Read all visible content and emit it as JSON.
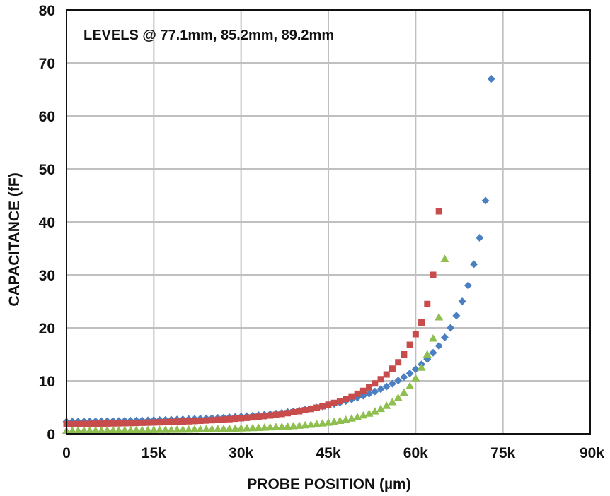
{
  "chart_data": {
    "type": "scatter",
    "title": "",
    "annotation": "LEVELS @ 77.1mm, 85.2mm, 89.2mm",
    "xlabel": "PROBE POSITION (µm)",
    "ylabel": "CAPACITANCE (fF)",
    "xlim": [
      0,
      90000
    ],
    "ylim": [
      0,
      80
    ],
    "x_ticks": [
      0,
      15000,
      30000,
      45000,
      60000,
      75000,
      90000
    ],
    "x_tick_labels": [
      "0",
      "15k",
      "30k",
      "45k",
      "60k",
      "75k",
      "90k"
    ],
    "y_ticks": [
      0,
      10,
      20,
      30,
      40,
      50,
      60,
      70,
      80
    ],
    "y_tick_labels": [
      "0",
      "10",
      "20",
      "30",
      "40",
      "50",
      "60",
      "70",
      "80"
    ],
    "grid": true,
    "legend": "none",
    "series": [
      {
        "marker": "diamond",
        "color": "#4a7fc1",
        "points": [
          [
            0,
            2.3
          ],
          [
            1000,
            2.31
          ],
          [
            2000,
            2.32
          ],
          [
            3000,
            2.34
          ],
          [
            4000,
            2.35
          ],
          [
            5000,
            2.37
          ],
          [
            6000,
            2.38
          ],
          [
            7000,
            2.4
          ],
          [
            8000,
            2.42
          ],
          [
            9000,
            2.44
          ],
          [
            10000,
            2.46
          ],
          [
            11000,
            2.48
          ],
          [
            12000,
            2.5
          ],
          [
            13000,
            2.52
          ],
          [
            14000,
            2.55
          ],
          [
            15000,
            2.58
          ],
          [
            16000,
            2.61
          ],
          [
            17000,
            2.64
          ],
          [
            18000,
            2.67
          ],
          [
            19000,
            2.7
          ],
          [
            20000,
            2.74
          ],
          [
            21000,
            2.78
          ],
          [
            22000,
            2.82
          ],
          [
            23000,
            2.86
          ],
          [
            24000,
            2.91
          ],
          [
            25000,
            2.96
          ],
          [
            26000,
            3.01
          ],
          [
            27000,
            3.07
          ],
          [
            28000,
            3.13
          ],
          [
            29000,
            3.2
          ],
          [
            30000,
            3.27
          ],
          [
            31000,
            3.35
          ],
          [
            32000,
            3.43
          ],
          [
            33000,
            3.52
          ],
          [
            34000,
            3.62
          ],
          [
            35000,
            3.72
          ],
          [
            36000,
            3.84
          ],
          [
            37000,
            3.96
          ],
          [
            38000,
            4.1
          ],
          [
            39000,
            4.24
          ],
          [
            40000,
            4.4
          ],
          [
            41000,
            4.57
          ],
          [
            42000,
            4.75
          ],
          [
            43000,
            4.95
          ],
          [
            44000,
            5.16
          ],
          [
            45000,
            5.39
          ],
          [
            46000,
            5.63
          ],
          [
            47000,
            5.9
          ],
          [
            48000,
            6.18
          ],
          [
            49000,
            6.49
          ],
          [
            50000,
            6.82
          ],
          [
            51000,
            7.18
          ],
          [
            52000,
            7.56
          ],
          [
            53000,
            7.98
          ],
          [
            54000,
            8.43
          ],
          [
            55000,
            8.92
          ],
          [
            56000,
            9.45
          ],
          [
            57000,
            10.05
          ],
          [
            58000,
            10.7
          ],
          [
            59000,
            11.4
          ],
          [
            60000,
            12.2
          ],
          [
            61000,
            13.1
          ],
          [
            62000,
            14.1
          ],
          [
            63000,
            15.3
          ],
          [
            64000,
            16.6
          ],
          [
            65000,
            18.2
          ],
          [
            66000,
            20.0
          ],
          [
            67000,
            22.3
          ],
          [
            68000,
            25.0
          ],
          [
            69000,
            28.0
          ],
          [
            70000,
            32.0
          ],
          [
            71000,
            37.0
          ],
          [
            72000,
            44.0
          ],
          [
            73000,
            67.0
          ]
        ]
      },
      {
        "marker": "square",
        "color": "#c84c4c",
        "points": [
          [
            0,
            1.8
          ],
          [
            1000,
            1.82
          ],
          [
            2000,
            1.84
          ],
          [
            3000,
            1.86
          ],
          [
            4000,
            1.88
          ],
          [
            5000,
            1.9
          ],
          [
            6000,
            1.92
          ],
          [
            7000,
            1.94
          ],
          [
            8000,
            1.96
          ],
          [
            9000,
            1.98
          ],
          [
            10000,
            2.0
          ],
          [
            11000,
            2.02
          ],
          [
            12000,
            2.05
          ],
          [
            13000,
            2.08
          ],
          [
            14000,
            2.11
          ],
          [
            15000,
            2.14
          ],
          [
            16000,
            2.17
          ],
          [
            17000,
            2.2
          ],
          [
            18000,
            2.24
          ],
          [
            19000,
            2.28
          ],
          [
            20000,
            2.32
          ],
          [
            21000,
            2.36
          ],
          [
            22000,
            2.41
          ],
          [
            23000,
            2.46
          ],
          [
            24000,
            2.51
          ],
          [
            25000,
            2.57
          ],
          [
            26000,
            2.63
          ],
          [
            27000,
            2.7
          ],
          [
            28000,
            2.77
          ],
          [
            29000,
            2.85
          ],
          [
            30000,
            2.93
          ],
          [
            31000,
            3.02
          ],
          [
            32000,
            3.12
          ],
          [
            33000,
            3.22
          ],
          [
            34000,
            3.34
          ],
          [
            35000,
            3.46
          ],
          [
            36000,
            3.6
          ],
          [
            37000,
            3.74
          ],
          [
            38000,
            3.9
          ],
          [
            39000,
            4.07
          ],
          [
            40000,
            4.26
          ],
          [
            41000,
            4.46
          ],
          [
            42000,
            4.69
          ],
          [
            43000,
            4.93
          ],
          [
            44000,
            5.2
          ],
          [
            45000,
            5.5
          ],
          [
            46000,
            5.83
          ],
          [
            47000,
            6.2
          ],
          [
            48000,
            6.6
          ],
          [
            49000,
            7.05
          ],
          [
            50000,
            7.55
          ],
          [
            51000,
            8.1
          ],
          [
            52000,
            8.75
          ],
          [
            53000,
            9.5
          ],
          [
            54000,
            10.3
          ],
          [
            55000,
            11.2
          ],
          [
            56000,
            12.3
          ],
          [
            57000,
            13.5
          ],
          [
            58000,
            15.0
          ],
          [
            59000,
            16.8
          ],
          [
            60000,
            18.8
          ],
          [
            61000,
            21.0
          ],
          [
            62000,
            24.5
          ],
          [
            63000,
            30.0
          ],
          [
            64000,
            42.0
          ]
        ]
      },
      {
        "marker": "triangle",
        "color": "#8fbf4f",
        "points": [
          [
            0,
            0.6
          ],
          [
            1000,
            0.61
          ],
          [
            2000,
            0.62
          ],
          [
            3000,
            0.63
          ],
          [
            4000,
            0.64
          ],
          [
            5000,
            0.65
          ],
          [
            6000,
            0.66
          ],
          [
            7000,
            0.67
          ],
          [
            8000,
            0.68
          ],
          [
            9000,
            0.69
          ],
          [
            10000,
            0.7
          ],
          [
            11000,
            0.71
          ],
          [
            12000,
            0.72
          ],
          [
            13000,
            0.73
          ],
          [
            14000,
            0.74
          ],
          [
            15000,
            0.75
          ],
          [
            16000,
            0.76
          ],
          [
            17000,
            0.77
          ],
          [
            18000,
            0.78
          ],
          [
            19000,
            0.79
          ],
          [
            20000,
            0.8
          ],
          [
            21000,
            0.82
          ],
          [
            22000,
            0.84
          ],
          [
            23000,
            0.86
          ],
          [
            24000,
            0.88
          ],
          [
            25000,
            0.9
          ],
          [
            26000,
            0.92
          ],
          [
            27000,
            0.94
          ],
          [
            28000,
            0.97
          ],
          [
            29000,
            1.0
          ],
          [
            30000,
            1.03
          ],
          [
            31000,
            1.06
          ],
          [
            32000,
            1.1
          ],
          [
            33000,
            1.14
          ],
          [
            34000,
            1.18
          ],
          [
            35000,
            1.23
          ],
          [
            36000,
            1.28
          ],
          [
            37000,
            1.34
          ],
          [
            38000,
            1.4
          ],
          [
            39000,
            1.47
          ],
          [
            40000,
            1.55
          ],
          [
            41000,
            1.64
          ],
          [
            42000,
            1.74
          ],
          [
            43000,
            1.85
          ],
          [
            44000,
            1.98
          ],
          [
            45000,
            2.12
          ],
          [
            46000,
            2.28
          ],
          [
            47000,
            2.46
          ],
          [
            48000,
            2.66
          ],
          [
            49000,
            2.9
          ],
          [
            50000,
            3.17
          ],
          [
            51000,
            3.48
          ],
          [
            52000,
            3.84
          ],
          [
            53000,
            4.25
          ],
          [
            54000,
            4.72
          ],
          [
            55000,
            5.3
          ],
          [
            56000,
            6.0
          ],
          [
            57000,
            6.8
          ],
          [
            58000,
            7.8
          ],
          [
            59000,
            9.0
          ],
          [
            60000,
            10.5
          ],
          [
            61000,
            12.5
          ],
          [
            62000,
            15.0
          ],
          [
            63000,
            18.0
          ],
          [
            64000,
            22.0
          ],
          [
            65000,
            33.0
          ]
        ]
      }
    ]
  }
}
